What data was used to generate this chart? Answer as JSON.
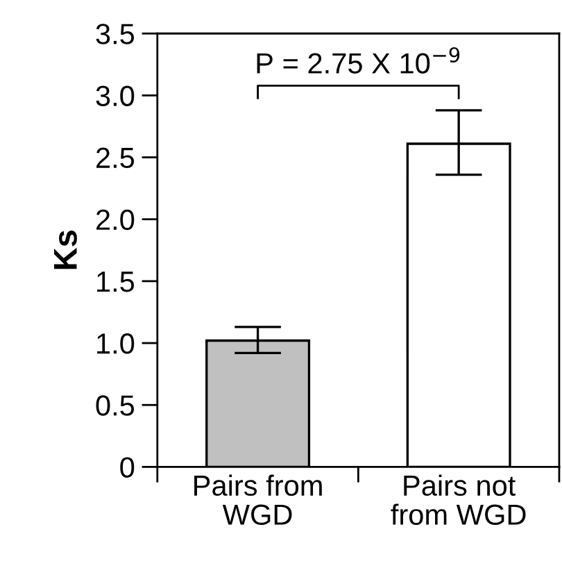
{
  "chart_data": {
    "type": "bar",
    "ylabel": "Ks",
    "categories": [
      "Pairs from\nWGD",
      "Pairs not\nfrom WGD"
    ],
    "values": [
      1.02,
      2.61
    ],
    "colors": [
      "#c0c0c0",
      "#ffffff"
    ],
    "errors": [
      [
        0.92,
        1.13
      ],
      [
        2.36,
        2.88
      ]
    ],
    "ylim": [
      0,
      3.5
    ],
    "yticks": [
      0,
      {
        "value": 0.5,
        "label": "0.5"
      },
      {
        "value": 1.0,
        "label": "1.0"
      },
      {
        "value": 1.5,
        "label": "1.5"
      },
      {
        "value": 2.0,
        "label": "2.0"
      },
      {
        "value": 2.5,
        "label": "2.5"
      },
      {
        "value": 3.0,
        "label": "3.0"
      },
      {
        "value": 3.5,
        "label": "3.5"
      }
    ],
    "annotations": [
      "P = 2.75 X 10$^{−9}$"
    ],
    "grid": false,
    "legend": false
  }
}
